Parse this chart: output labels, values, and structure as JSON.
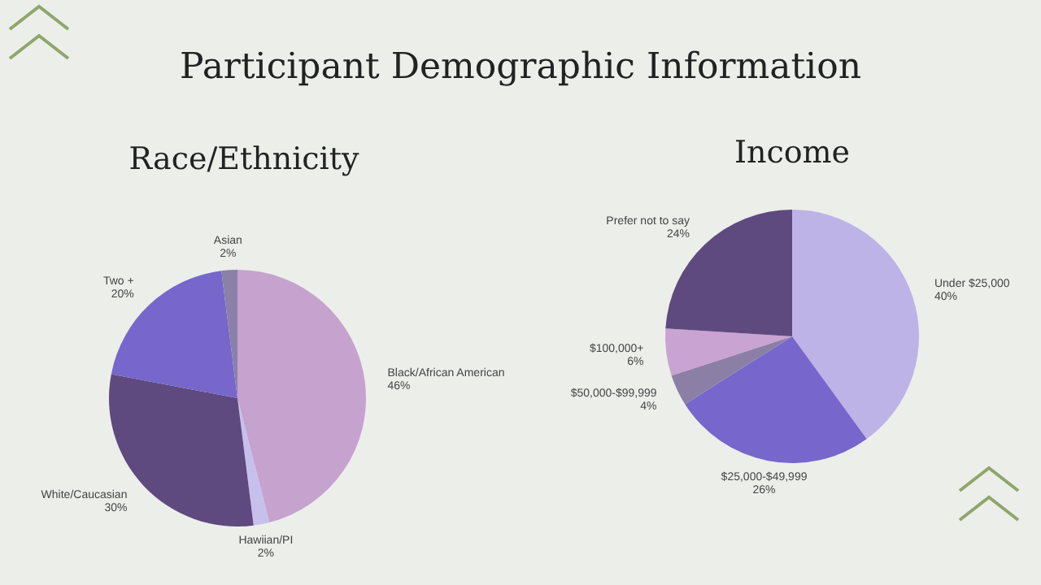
{
  "chart_data": [
    {
      "type": "other",
      "title": "Participant Demographic Information"
    },
    {
      "type": "pie",
      "title": "Race/Ethnicity",
      "categories": [
        "Black/African American",
        "Hawiian/PI",
        "White/Caucasian",
        "Two +",
        "Asian"
      ],
      "values": [
        46,
        2,
        30,
        20,
        2
      ],
      "colors": [
        "#c6a2cf",
        "#c6c0ec",
        "#5e4a7e",
        "#7766cc",
        "#8a80a8"
      ],
      "value_labels": [
        "46%",
        "2%",
        "30%",
        "20%",
        "2%"
      ]
    },
    {
      "type": "pie",
      "title": "Income",
      "categories": [
        "Under $25,000",
        "$25,000-$49,999",
        "$50,000-$99,999",
        "$100,000+",
        "Prefer not to say"
      ],
      "values": [
        40,
        26,
        4,
        6,
        24
      ],
      "colors": [
        "#bdb3e6",
        "#7766cc",
        "#8b7fa6",
        "#c9a3d2",
        "#5e4a7e"
      ],
      "value_labels": [
        "40%",
        "26%",
        "4%",
        "6%",
        "24%"
      ]
    }
  ]
}
